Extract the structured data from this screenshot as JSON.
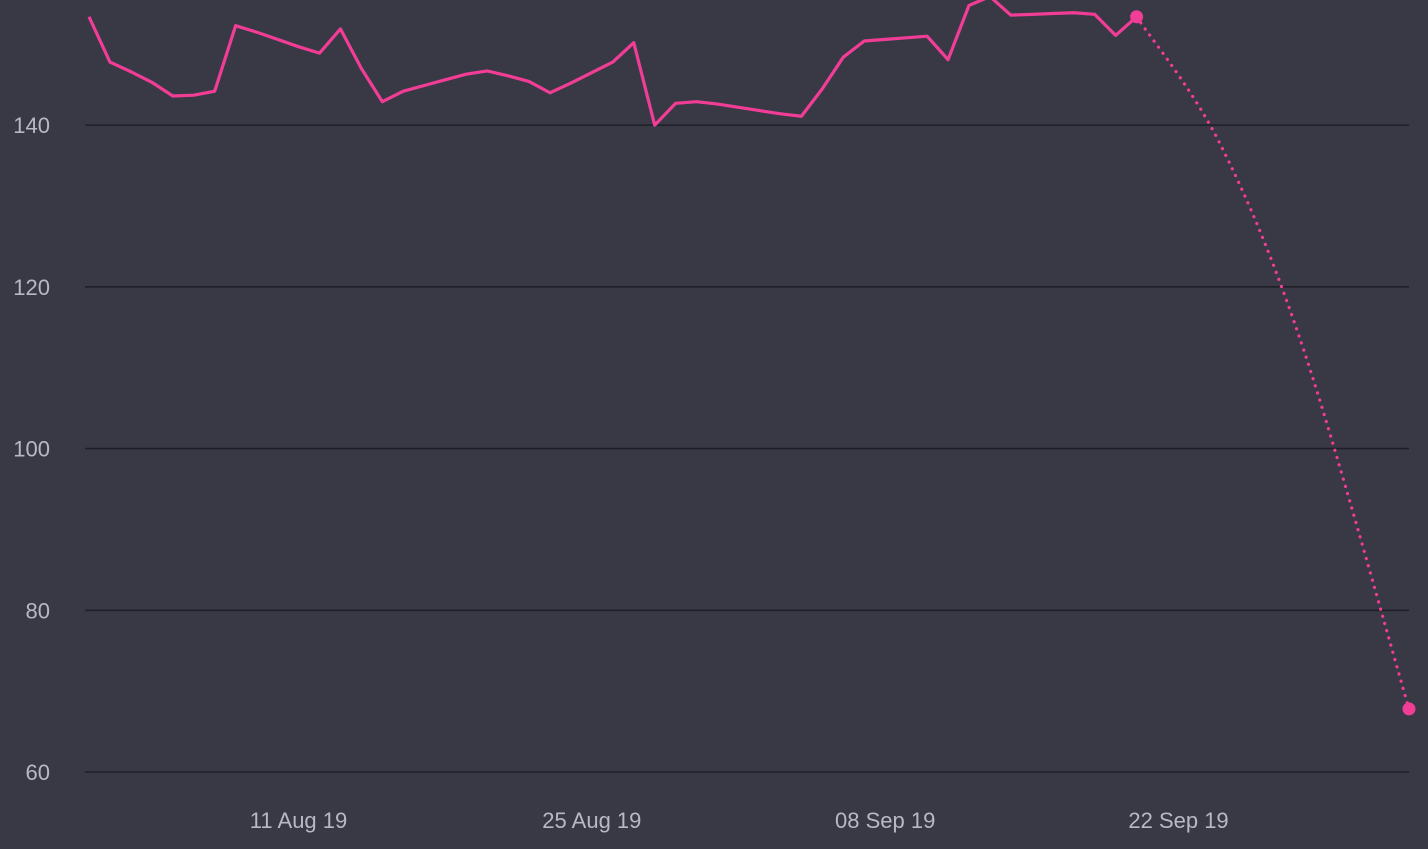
{
  "chart_data": {
    "type": "line",
    "title": "",
    "xlabel": "",
    "ylabel": "",
    "ylim": [
      60,
      153
    ],
    "grid": true,
    "y_ticks": [
      60,
      80,
      100,
      120,
      140
    ],
    "y_tick_labels": [
      "60",
      "80",
      "100",
      "120",
      "140"
    ],
    "x_ticks": [
      "2019-08-11",
      "2019-08-25",
      "2019-09-08",
      "2019-09-22"
    ],
    "x_tick_labels": [
      "11 Aug 19",
      "25 Aug 19",
      "08 Sep 19",
      "22 Sep 19"
    ],
    "x_range": [
      "2019-08-01",
      "2019-10-03"
    ],
    "colors": {
      "background": "#393945",
      "series": "#f23d96",
      "grid": "#1f1f27",
      "tick_text": "#b8b8c6"
    },
    "series": [
      {
        "line_style": "solid",
        "points": [
          [
            "2019-08-01",
            153.4
          ],
          [
            "2019-08-02",
            147.8
          ],
          [
            "2019-08-03",
            146.6
          ],
          [
            "2019-08-04",
            145.3
          ],
          [
            "2019-08-05",
            143.6
          ],
          [
            "2019-08-06",
            143.7
          ],
          [
            "2019-08-07",
            144.2
          ],
          [
            "2019-08-08",
            152.3
          ],
          [
            "2019-08-09",
            151.5
          ],
          [
            "2019-08-10",
            150.6
          ],
          [
            "2019-08-11",
            149.7
          ],
          [
            "2019-08-12",
            148.9
          ],
          [
            "2019-08-13",
            151.9
          ],
          [
            "2019-08-14",
            147.0
          ],
          [
            "2019-08-15",
            142.9
          ],
          [
            "2019-08-16",
            144.2
          ],
          [
            "2019-08-17",
            144.9
          ],
          [
            "2019-08-18",
            145.6
          ],
          [
            "2019-08-19",
            146.3
          ],
          [
            "2019-08-20",
            146.7
          ],
          [
            "2019-08-21",
            146.1
          ],
          [
            "2019-08-22",
            145.4
          ],
          [
            "2019-08-23",
            144.0
          ],
          [
            "2019-08-24",
            145.2
          ],
          [
            "2019-08-25",
            146.5
          ],
          [
            "2019-08-26",
            147.8
          ],
          [
            "2019-08-27",
            150.2
          ],
          [
            "2019-08-28",
            140.0
          ],
          [
            "2019-08-29",
            142.7
          ],
          [
            "2019-08-30",
            142.9
          ],
          [
            "2019-08-31",
            142.6
          ],
          [
            "2019-09-01",
            142.2
          ],
          [
            "2019-09-02",
            141.8
          ],
          [
            "2019-09-03",
            141.4
          ],
          [
            "2019-09-04",
            141.1
          ],
          [
            "2019-09-05",
            144.5
          ],
          [
            "2019-09-06",
            148.4
          ],
          [
            "2019-09-07",
            150.4
          ],
          [
            "2019-09-08",
            150.6
          ],
          [
            "2019-09-09",
            150.8
          ],
          [
            "2019-09-10",
            151.0
          ],
          [
            "2019-09-11",
            148.1
          ],
          [
            "2019-09-12",
            154.8
          ],
          [
            "2019-09-13",
            155.9
          ],
          [
            "2019-09-14",
            153.6
          ],
          [
            "2019-09-15",
            153.7
          ],
          [
            "2019-09-16",
            153.8
          ],
          [
            "2019-09-17",
            153.9
          ],
          [
            "2019-09-18",
            153.7
          ],
          [
            "2019-09-19",
            151.1
          ],
          [
            "2019-09-20",
            153.4
          ]
        ]
      },
      {
        "line_style": "dotted",
        "markers": "endpoints",
        "points": [
          [
            "2019-09-20",
            153.4
          ],
          [
            "2019-09-24",
            137.6
          ],
          [
            "2019-09-28",
            112.0
          ],
          [
            "2019-10-03",
            67.8
          ]
        ]
      }
    ]
  }
}
